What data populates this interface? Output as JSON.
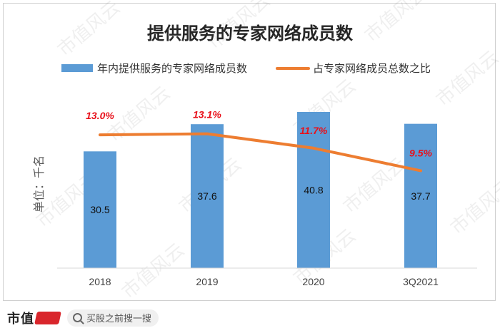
{
  "chart_data": {
    "type": "bar+line",
    "title": "提供服务的专家网络成员数",
    "ylabel": "单位：千名",
    "categories": [
      "2018",
      "2019",
      "2020",
      "3Q2021"
    ],
    "series": [
      {
        "name": "年内提供服务的专家网络成员数",
        "type": "bar",
        "values": [
          30.5,
          37.6,
          40.8,
          37.7
        ],
        "labels": [
          "30.5",
          "37.6",
          "40.8",
          "37.7"
        ],
        "color": "#5b9bd5"
      },
      {
        "name": "占专家网络成员总数之比",
        "type": "line",
        "values": [
          13.0,
          13.1,
          11.7,
          9.5
        ],
        "labels": [
          "13.0%",
          "13.1%",
          "11.7%",
          "9.5%"
        ],
        "color": "#ed7d31"
      }
    ],
    "bar_axis_max": 40.8,
    "pct_axis_range": [
      0,
      18.5
    ],
    "grid": false,
    "legend": "top"
  },
  "watermark": "市值风云",
  "footer": {
    "brand": "市值",
    "search_placeholder": "买股之前搜一搜"
  }
}
